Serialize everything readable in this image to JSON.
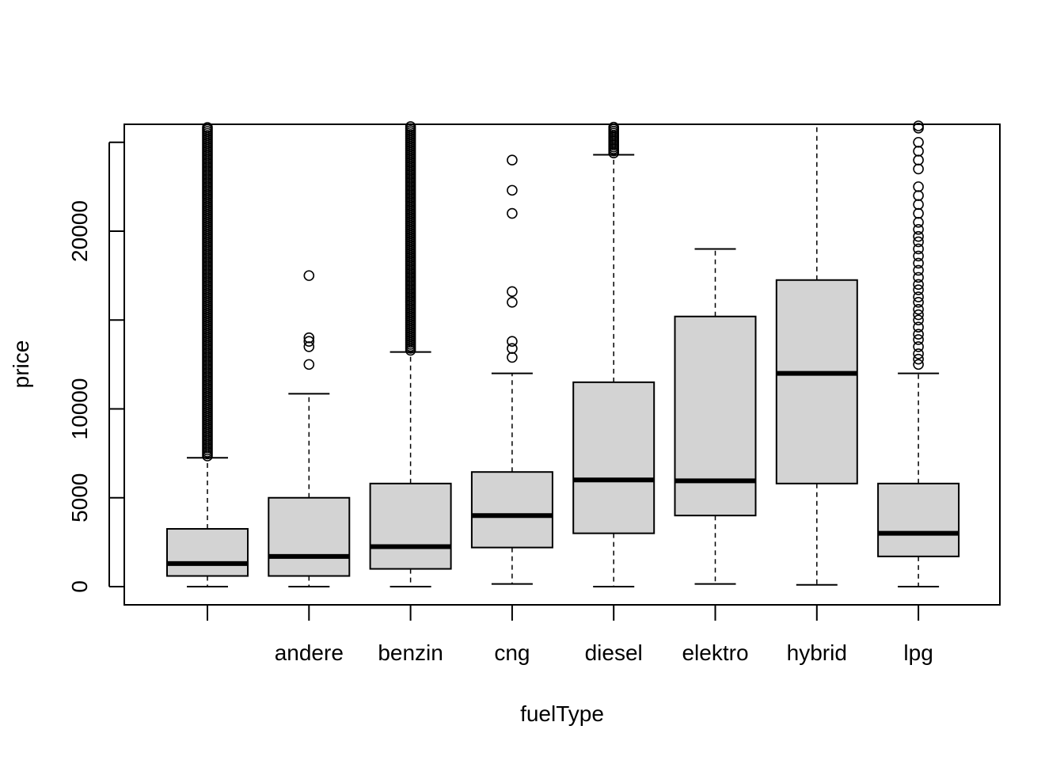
{
  "chart_data": {
    "type": "box",
    "title": "",
    "xlabel": "fuelType",
    "ylabel": "price",
    "categories": [
      "",
      "andere",
      "benzin",
      "cng",
      "diesel",
      "elektro",
      "hybrid",
      "lpg"
    ],
    "ylim": [
      -1000,
      26000
    ],
    "yticks": [
      0,
      5000,
      10000,
      15000,
      20000,
      25000
    ],
    "ytick_labels": [
      "0",
      "5000",
      "10000",
      "",
      "20000",
      ""
    ],
    "grid": false,
    "box_fill": "#d3d3d3",
    "stroke": "#000000",
    "boxes": [
      {
        "category": "",
        "whisker_low": 0,
        "q1": 600,
        "median": 1300,
        "q3": 3250,
        "whisker_high": 7250,
        "outliers": {
          "dense_from": 7350,
          "dense_to": 26000,
          "points": []
        }
      },
      {
        "category": "andere",
        "whisker_low": 0,
        "q1": 600,
        "median": 1700,
        "q3": 5000,
        "whisker_high": 10850,
        "outliers": {
          "points": [
            12500,
            13500,
            13800,
            14000,
            17500
          ]
        }
      },
      {
        "category": "benzin",
        "whisker_low": 0,
        "q1": 999,
        "median": 2250,
        "q3": 5800,
        "whisker_high": 13200,
        "outliers": {
          "dense_from": 13300,
          "dense_to": 26000,
          "points": []
        }
      },
      {
        "category": "cng",
        "whisker_low": 150,
        "q1": 2200,
        "median": 4000,
        "q3": 6450,
        "whisker_high": 12000,
        "outliers": {
          "points": [
            12900,
            13400,
            13800,
            16000,
            16600,
            21000,
            22300,
            24000
          ]
        }
      },
      {
        "category": "diesel",
        "whisker_low": 0,
        "q1": 3000,
        "median": 6000,
        "q3": 11500,
        "whisker_high": 24300,
        "outliers": {
          "dense_from": 24400,
          "dense_to": 26000,
          "points": []
        }
      },
      {
        "category": "elektro",
        "whisker_low": 150,
        "q1": 4000,
        "median": 5950,
        "q3": 15200,
        "whisker_high": 19000,
        "outliers": {
          "points": []
        }
      },
      {
        "category": "hybrid",
        "whisker_low": 100,
        "q1": 5800,
        "median": 12000,
        "q3": 17250,
        "whisker_high": 26000,
        "outliers": {
          "points": []
        }
      },
      {
        "category": "lpg",
        "whisker_low": 0,
        "q1": 1700,
        "median": 3000,
        "q3": 5800,
        "whisker_high": 12000,
        "outliers": {
          "points": [
            12500,
            12800,
            13100,
            13500,
            13900,
            14200,
            14600,
            15000,
            15300,
            15600,
            16000,
            16300,
            16700,
            17000,
            17400,
            17800,
            18200,
            18600,
            19000,
            19400,
            19700,
            20100,
            20500,
            21000,
            21500,
            22000,
            22500,
            23500,
            24000,
            24500,
            25000,
            25800,
            26000
          ]
        }
      }
    ]
  }
}
